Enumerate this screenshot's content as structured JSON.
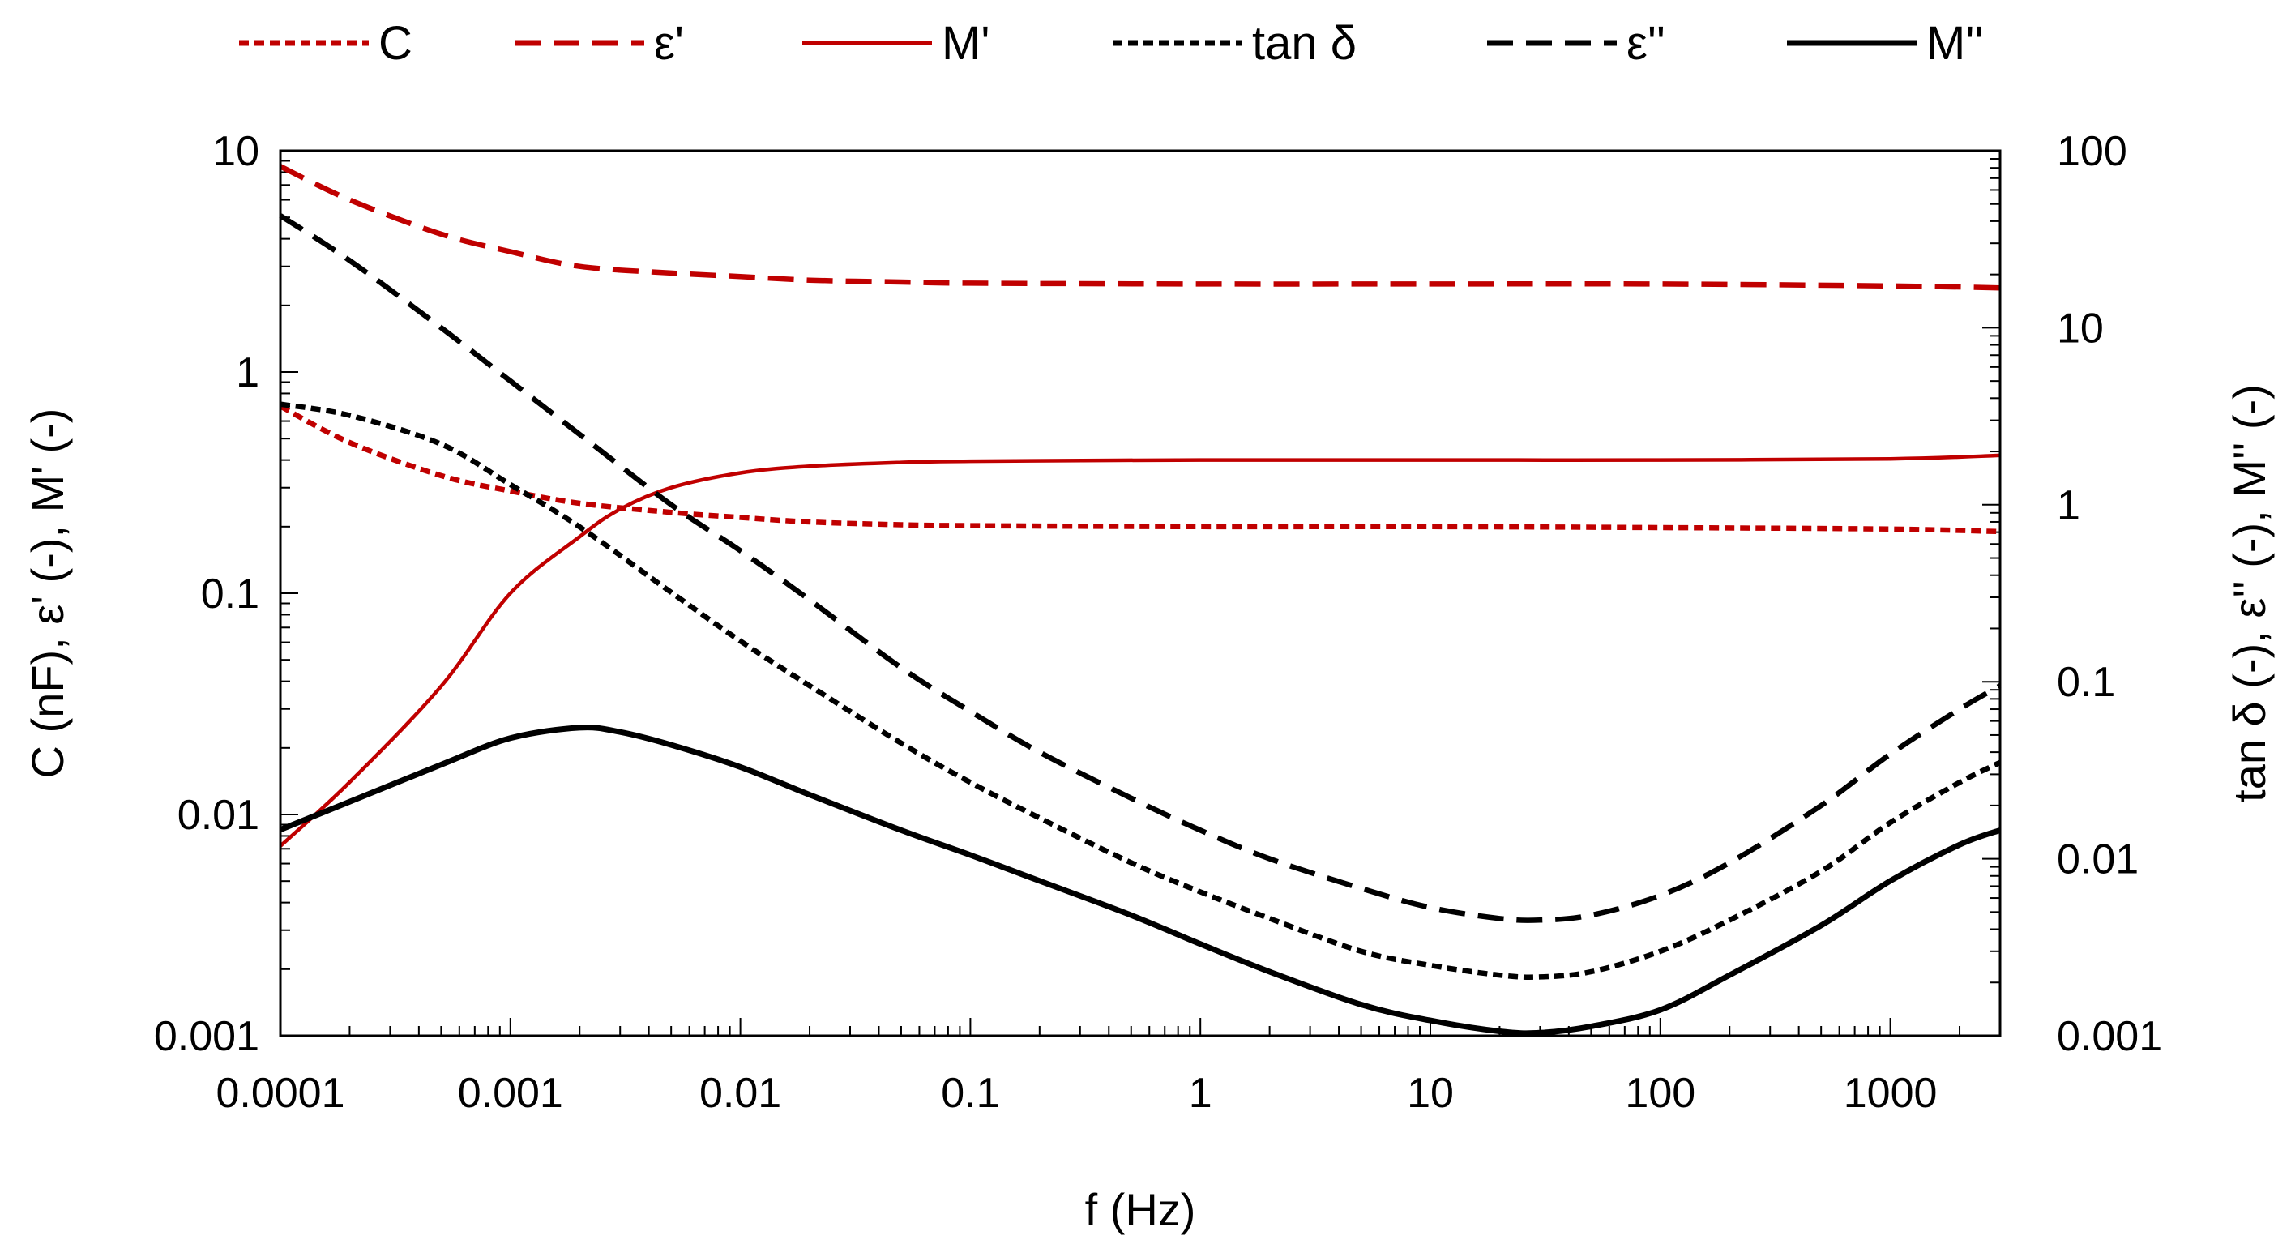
{
  "chart_data": {
    "type": "line",
    "title": "",
    "xlabel": "f (Hz)",
    "ylabel_left": "C (nF), ε' (-), M' (-)",
    "ylabel_right": "tan δ (-), ε'' (-), M'' (-)",
    "x_scale": "log",
    "y_scale": "log",
    "xlim": [
      0.0001,
      3000
    ],
    "ylim_left": [
      0.001,
      10
    ],
    "ylim_right": [
      0.001,
      100
    ],
    "x_tick_labels": [
      "0.0001",
      "0.001",
      "0.01",
      "0.1",
      "1",
      "10",
      "100",
      "1000"
    ],
    "y_left_tick_labels": [
      "0.001",
      "0.01",
      "0.1",
      "1",
      "10"
    ],
    "y_right_tick_labels": [
      "0.001",
      "0.01",
      "0.1",
      "1",
      "10",
      "100"
    ],
    "legend_position": "top",
    "series": [
      {
        "name": "C",
        "axis": "left",
        "color": "#c00000",
        "style": "dotted",
        "points": [
          [
            0.0001,
            0.7
          ],
          [
            0.0002,
            0.48
          ],
          [
            0.0005,
            0.34
          ],
          [
            0.001,
            0.29
          ],
          [
            0.002,
            0.255
          ],
          [
            0.005,
            0.232
          ],
          [
            0.01,
            0.22
          ],
          [
            0.02,
            0.21
          ],
          [
            0.05,
            0.204
          ],
          [
            0.1,
            0.202
          ],
          [
            1,
            0.2
          ],
          [
            10,
            0.2
          ],
          [
            100,
            0.198
          ],
          [
            1000,
            0.195
          ],
          [
            3000,
            0.19
          ]
        ]
      },
      {
        "name": "ε'",
        "axis": "left",
        "color": "#c00000",
        "style": "dashed",
        "points": [
          [
            0.0001,
            8.5
          ],
          [
            0.0002,
            6.0
          ],
          [
            0.0005,
            4.2
          ],
          [
            0.001,
            3.5
          ],
          [
            0.002,
            3.0
          ],
          [
            0.005,
            2.8
          ],
          [
            0.01,
            2.7
          ],
          [
            0.02,
            2.6
          ],
          [
            0.05,
            2.55
          ],
          [
            0.1,
            2.52
          ],
          [
            1,
            2.5
          ],
          [
            10,
            2.5
          ],
          [
            100,
            2.5
          ],
          [
            1000,
            2.45
          ],
          [
            3000,
            2.4
          ]
        ]
      },
      {
        "name": "M'",
        "axis": "left",
        "color": "#c00000",
        "style": "solid",
        "points": [
          [
            0.0001,
            0.0072
          ],
          [
            0.0002,
            0.014
          ],
          [
            0.0005,
            0.038
          ],
          [
            0.001,
            0.1
          ],
          [
            0.002,
            0.18
          ],
          [
            0.003,
            0.24
          ],
          [
            0.005,
            0.3
          ],
          [
            0.01,
            0.35
          ],
          [
            0.02,
            0.375
          ],
          [
            0.05,
            0.39
          ],
          [
            0.1,
            0.395
          ],
          [
            1,
            0.4
          ],
          [
            10,
            0.4
          ],
          [
            100,
            0.4
          ],
          [
            1000,
            0.405
          ],
          [
            3000,
            0.42
          ]
        ]
      },
      {
        "name": "tan δ",
        "axis": "right",
        "color": "#000000",
        "style": "dotted",
        "points": [
          [
            0.0001,
            3.7
          ],
          [
            0.0002,
            3.2
          ],
          [
            0.0005,
            2.2
          ],
          [
            0.001,
            1.3
          ],
          [
            0.002,
            0.75
          ],
          [
            0.005,
            0.32
          ],
          [
            0.01,
            0.17
          ],
          [
            0.02,
            0.095
          ],
          [
            0.05,
            0.045
          ],
          [
            0.1,
            0.027
          ],
          [
            0.2,
            0.017
          ],
          [
            0.5,
            0.0095
          ],
          [
            1,
            0.0065
          ],
          [
            2,
            0.0046
          ],
          [
            5,
            0.003
          ],
          [
            10,
            0.0025
          ],
          [
            20,
            0.0022
          ],
          [
            30,
            0.00215
          ],
          [
            50,
            0.0023
          ],
          [
            100,
            0.003
          ],
          [
            200,
            0.0045
          ],
          [
            500,
            0.0085
          ],
          [
            1000,
            0.016
          ],
          [
            2000,
            0.027
          ],
          [
            3000,
            0.035
          ]
        ]
      },
      {
        "name": "ε''",
        "axis": "right",
        "color": "#000000",
        "style": "dashed",
        "points": [
          [
            0.0001,
            43
          ],
          [
            0.0002,
            24
          ],
          [
            0.0005,
            10
          ],
          [
            0.001,
            5.0
          ],
          [
            0.002,
            2.5
          ],
          [
            0.005,
            1.0
          ],
          [
            0.01,
            0.55
          ],
          [
            0.02,
            0.29
          ],
          [
            0.05,
            0.12
          ],
          [
            0.1,
            0.068
          ],
          [
            0.2,
            0.04
          ],
          [
            0.5,
            0.022
          ],
          [
            1,
            0.0145
          ],
          [
            2,
            0.01
          ],
          [
            5,
            0.0068
          ],
          [
            10,
            0.0053
          ],
          [
            20,
            0.0046
          ],
          [
            30,
            0.0045
          ],
          [
            50,
            0.0048
          ],
          [
            100,
            0.0062
          ],
          [
            200,
            0.0095
          ],
          [
            500,
            0.02
          ],
          [
            1000,
            0.039
          ],
          [
            2000,
            0.07
          ],
          [
            3000,
            0.095
          ]
        ]
      },
      {
        "name": "M''",
        "axis": "right",
        "color": "#000000",
        "style": "solid",
        "points": [
          [
            0.0001,
            0.0146
          ],
          [
            0.0002,
            0.021
          ],
          [
            0.0005,
            0.034
          ],
          [
            0.001,
            0.048
          ],
          [
            0.002,
            0.055
          ],
          [
            0.003,
            0.052
          ],
          [
            0.005,
            0.044
          ],
          [
            0.01,
            0.033
          ],
          [
            0.02,
            0.023
          ],
          [
            0.05,
            0.0145
          ],
          [
            0.1,
            0.0105
          ],
          [
            0.2,
            0.0075
          ],
          [
            0.5,
            0.0048
          ],
          [
            1,
            0.0033
          ],
          [
            2,
            0.0023
          ],
          [
            5,
            0.0015
          ],
          [
            10,
            0.00122
          ],
          [
            20,
            0.00106
          ],
          [
            30,
            0.00104
          ],
          [
            50,
            0.00113
          ],
          [
            100,
            0.0014
          ],
          [
            200,
            0.0022
          ],
          [
            500,
            0.0042
          ],
          [
            1000,
            0.0075
          ],
          [
            2000,
            0.012
          ],
          [
            3000,
            0.0145
          ]
        ]
      }
    ]
  }
}
